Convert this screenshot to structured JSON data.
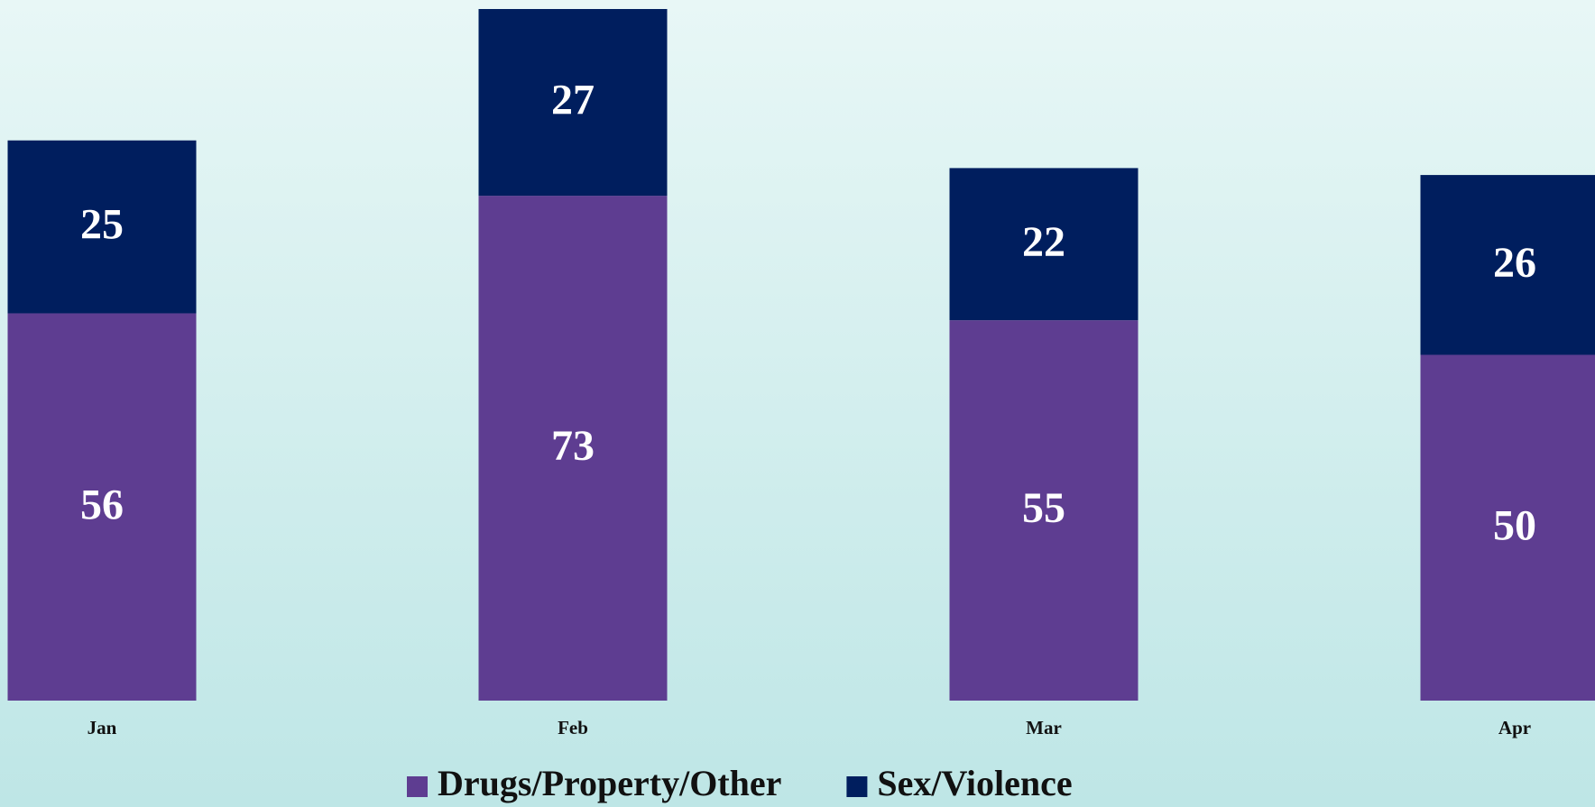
{
  "chart_data": {
    "type": "stacked_bar",
    "categories": [
      "Jan",
      "Feb",
      "Mar",
      "Apr"
    ],
    "series": [
      {
        "name": "Drugs/Property/Other",
        "color": "#5e3d91",
        "values": [
          56,
          73,
          55,
          50
        ]
      },
      {
        "name": "Sex/Violence",
        "color": "#001e5e",
        "values": [
          25,
          27,
          22,
          26
        ]
      }
    ],
    "ylim": [
      0,
      100
    ]
  }
}
